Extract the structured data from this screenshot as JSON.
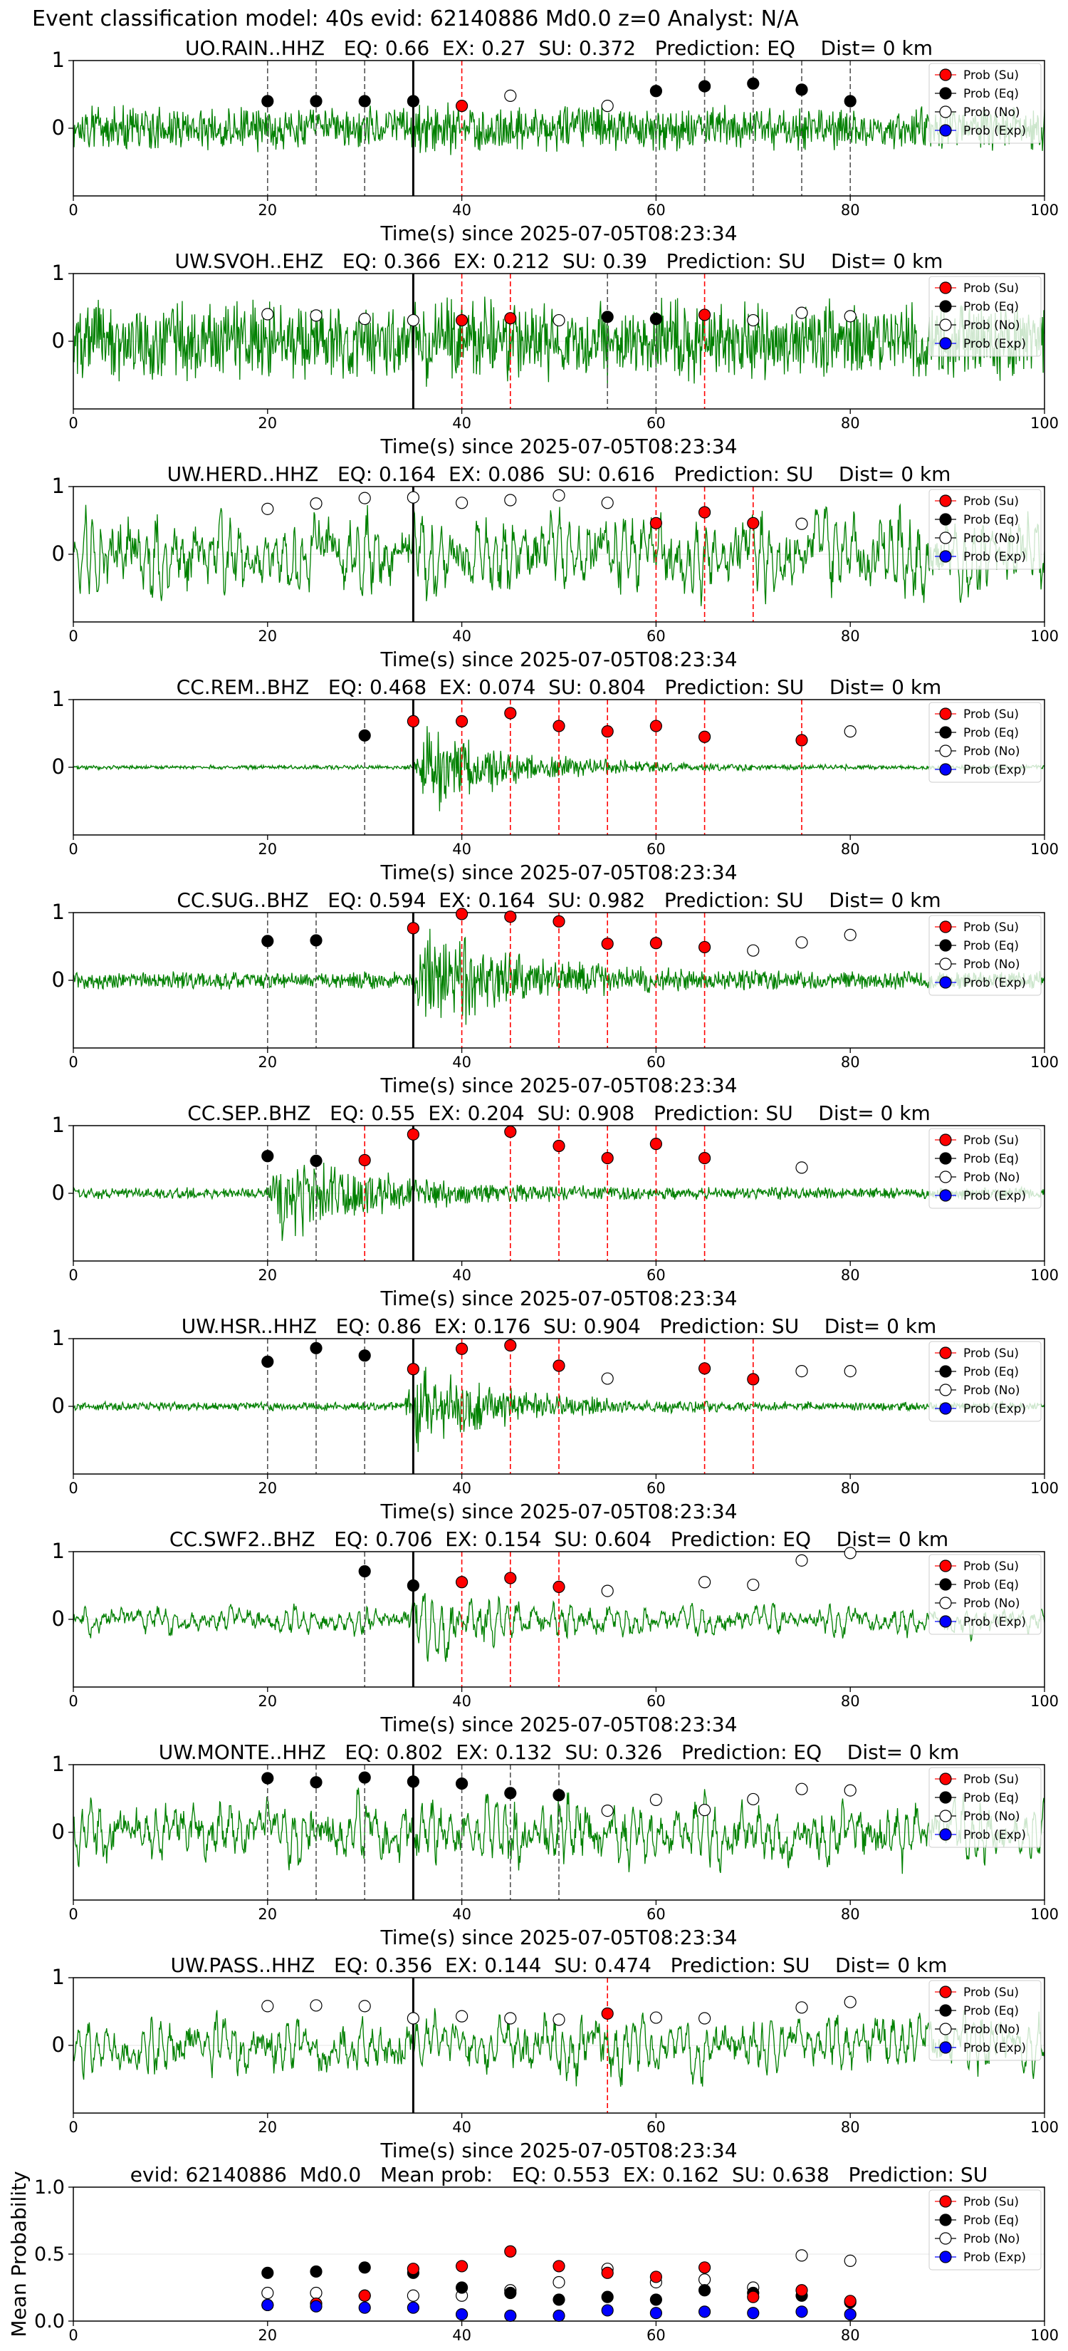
{
  "figure": {
    "suptitle": "Event classification model: 40s evid: 62140886 Md0.0 z=0 Analyst: N/A"
  },
  "legend_labels": [
    "Prob (Su)",
    "Prob (Eq)",
    "Prob (No)",
    "Prob (Exp)"
  ],
  "colors": {
    "waveform": "#008000",
    "su": "#ff0000",
    "eq": "#000000",
    "no": "#ffffff",
    "exp": "#0000ff",
    "pick_line": "#000000",
    "eq_window": "#555555",
    "su_window": "#ff0000"
  },
  "chart_data": [
    {
      "type": "scatter",
      "title": "UO.RAIN..HHZ   EQ: 0.66  EX: 0.27  SU: 0.372   Prediction: EQ    Dist= 0 km",
      "xlabel": "Time(s) since 2025-07-05T08:23:34",
      "xlim": [
        0,
        100
      ],
      "ylim": [
        -1,
        1
      ],
      "xticks": [
        0,
        20,
        40,
        60,
        80,
        100
      ],
      "yticks": [
        0,
        1
      ],
      "waveform": {
        "amplitude": 0.3,
        "style": "noise",
        "burst_start": 34,
        "burst_gain": 1.2
      },
      "pick_time": 35,
      "points": [
        {
          "x": 20,
          "y": 0.4,
          "class": "eq"
        },
        {
          "x": 25,
          "y": 0.4,
          "class": "eq"
        },
        {
          "x": 30,
          "y": 0.4,
          "class": "eq"
        },
        {
          "x": 35,
          "y": 0.4,
          "class": "eq"
        },
        {
          "x": 40,
          "y": 0.33,
          "class": "su"
        },
        {
          "x": 45,
          "y": 0.48,
          "class": "no"
        },
        {
          "x": 55,
          "y": 0.33,
          "class": "no"
        },
        {
          "x": 60,
          "y": 0.55,
          "class": "eq"
        },
        {
          "x": 65,
          "y": 0.62,
          "class": "eq"
        },
        {
          "x": 70,
          "y": 0.66,
          "class": "eq"
        },
        {
          "x": 75,
          "y": 0.57,
          "class": "eq"
        },
        {
          "x": 80,
          "y": 0.4,
          "class": "eq"
        }
      ]
    },
    {
      "type": "scatter",
      "title": "UW.SVOH..EHZ   EQ: 0.366  EX: 0.212  SU: 0.39   Prediction: SU    Dist= 0 km",
      "xlabel": "Time(s) since 2025-07-05T08:23:34",
      "xlim": [
        0,
        100
      ],
      "ylim": [
        -1,
        1
      ],
      "xticks": [
        0,
        20,
        40,
        60,
        80,
        100
      ],
      "yticks": [
        0,
        1
      ],
      "waveform": {
        "amplitude": 0.55,
        "style": "noise",
        "burst_start": 34,
        "burst_gain": 1.1
      },
      "pick_time": 35,
      "points": [
        {
          "x": 20,
          "y": 0.4,
          "class": "no"
        },
        {
          "x": 25,
          "y": 0.38,
          "class": "no"
        },
        {
          "x": 30,
          "y": 0.33,
          "class": "no"
        },
        {
          "x": 35,
          "y": 0.31,
          "class": "no"
        },
        {
          "x": 40,
          "y": 0.31,
          "class": "su"
        },
        {
          "x": 45,
          "y": 0.34,
          "class": "su"
        },
        {
          "x": 50,
          "y": 0.31,
          "class": "no"
        },
        {
          "x": 55,
          "y": 0.36,
          "class": "eq"
        },
        {
          "x": 60,
          "y": 0.33,
          "class": "eq"
        },
        {
          "x": 65,
          "y": 0.39,
          "class": "su"
        },
        {
          "x": 70,
          "y": 0.31,
          "class": "no"
        },
        {
          "x": 75,
          "y": 0.42,
          "class": "no"
        },
        {
          "x": 80,
          "y": 0.37,
          "class": "no"
        }
      ]
    },
    {
      "type": "scatter",
      "title": "UW.HERD..HHZ   EQ: 0.164  EX: 0.086  SU: 0.616   Prediction: SU    Dist= 0 km",
      "xlabel": "Time(s) since 2025-07-05T08:23:34",
      "xlim": [
        0,
        100
      ],
      "ylim": [
        -1,
        1
      ],
      "xticks": [
        0,
        20,
        40,
        60,
        80,
        100
      ],
      "yticks": [
        0,
        1
      ],
      "waveform": {
        "amplitude": 0.6,
        "style": "wavy",
        "burst_start": 34,
        "burst_gain": 1.0
      },
      "pick_time": 35,
      "points": [
        {
          "x": 20,
          "y": 0.67,
          "class": "no"
        },
        {
          "x": 25,
          "y": 0.75,
          "class": "no"
        },
        {
          "x": 30,
          "y": 0.83,
          "class": "no"
        },
        {
          "x": 35,
          "y": 0.84,
          "class": "no"
        },
        {
          "x": 40,
          "y": 0.76,
          "class": "no"
        },
        {
          "x": 45,
          "y": 0.8,
          "class": "no"
        },
        {
          "x": 50,
          "y": 0.87,
          "class": "no"
        },
        {
          "x": 55,
          "y": 0.76,
          "class": "no"
        },
        {
          "x": 60,
          "y": 0.46,
          "class": "su"
        },
        {
          "x": 65,
          "y": 0.62,
          "class": "su"
        },
        {
          "x": 70,
          "y": 0.46,
          "class": "su"
        },
        {
          "x": 75,
          "y": 0.45,
          "class": "no"
        }
      ]
    },
    {
      "type": "scatter",
      "title": "CC.REM..BHZ   EQ: 0.468  EX: 0.074  SU: 0.804   Prediction: SU    Dist= 0 km",
      "xlabel": "Time(s) since 2025-07-05T08:23:34",
      "xlim": [
        0,
        100
      ],
      "ylim": [
        -1,
        1
      ],
      "xticks": [
        0,
        20,
        40,
        60,
        80,
        100
      ],
      "yticks": [
        0,
        1
      ],
      "waveform": {
        "amplitude": 0.03,
        "style": "event",
        "burst_start": 35,
        "burst_gain": 22
      },
      "pick_time": 35,
      "points": [
        {
          "x": 30,
          "y": 0.47,
          "class": "eq"
        },
        {
          "x": 35,
          "y": 0.68,
          "class": "su"
        },
        {
          "x": 40,
          "y": 0.68,
          "class": "su"
        },
        {
          "x": 45,
          "y": 0.8,
          "class": "su"
        },
        {
          "x": 50,
          "y": 0.61,
          "class": "su"
        },
        {
          "x": 55,
          "y": 0.53,
          "class": "su"
        },
        {
          "x": 60,
          "y": 0.61,
          "class": "su"
        },
        {
          "x": 65,
          "y": 0.45,
          "class": "su"
        },
        {
          "x": 75,
          "y": 0.4,
          "class": "su"
        },
        {
          "x": 80,
          "y": 0.53,
          "class": "no"
        }
      ]
    },
    {
      "type": "scatter",
      "title": "CC.SUG..BHZ   EQ: 0.594  EX: 0.164  SU: 0.982   Prediction: SU    Dist= 0 km",
      "xlabel": "Time(s) since 2025-07-05T08:23:34",
      "xlim": [
        0,
        100
      ],
      "ylim": [
        -1,
        1
      ],
      "xticks": [
        0,
        20,
        40,
        60,
        80,
        100
      ],
      "yticks": [
        0,
        1
      ],
      "waveform": {
        "amplitude": 0.12,
        "style": "event",
        "burst_start": 35,
        "burst_gain": 7
      },
      "pick_time": 35,
      "points": [
        {
          "x": 20,
          "y": 0.58,
          "class": "eq"
        },
        {
          "x": 25,
          "y": 0.59,
          "class": "eq"
        },
        {
          "x": 35,
          "y": 0.77,
          "class": "su"
        },
        {
          "x": 40,
          "y": 0.98,
          "class": "su"
        },
        {
          "x": 45,
          "y": 0.94,
          "class": "su"
        },
        {
          "x": 50,
          "y": 0.87,
          "class": "su"
        },
        {
          "x": 55,
          "y": 0.54,
          "class": "su"
        },
        {
          "x": 60,
          "y": 0.55,
          "class": "su"
        },
        {
          "x": 65,
          "y": 0.49,
          "class": "su"
        },
        {
          "x": 70,
          "y": 0.44,
          "class": "no"
        },
        {
          "x": 75,
          "y": 0.56,
          "class": "no"
        },
        {
          "x": 80,
          "y": 0.67,
          "class": "no"
        }
      ]
    },
    {
      "type": "scatter",
      "title": "CC.SEP..BHZ   EQ: 0.55  EX: 0.204  SU: 0.908   Prediction: SU    Dist= 0 km",
      "xlabel": "Time(s) since 2025-07-05T08:23:34",
      "xlim": [
        0,
        100
      ],
      "ylim": [
        -1,
        1
      ],
      "xticks": [
        0,
        20,
        40,
        60,
        80,
        100
      ],
      "yticks": [
        0,
        1
      ],
      "waveform": {
        "amplitude": 0.08,
        "style": "event",
        "burst_start": 20,
        "burst_gain": 9
      },
      "pick_time": 35,
      "points": [
        {
          "x": 20,
          "y": 0.55,
          "class": "eq"
        },
        {
          "x": 25,
          "y": 0.48,
          "class": "eq"
        },
        {
          "x": 30,
          "y": 0.49,
          "class": "su"
        },
        {
          "x": 35,
          "y": 0.87,
          "class": "su"
        },
        {
          "x": 45,
          "y": 0.91,
          "class": "su"
        },
        {
          "x": 50,
          "y": 0.7,
          "class": "su"
        },
        {
          "x": 55,
          "y": 0.52,
          "class": "su"
        },
        {
          "x": 60,
          "y": 0.73,
          "class": "su"
        },
        {
          "x": 65,
          "y": 0.52,
          "class": "su"
        },
        {
          "x": 75,
          "y": 0.38,
          "class": "no"
        }
      ]
    },
    {
      "type": "scatter",
      "title": "UW.HSR..HHZ   EQ: 0.86  EX: 0.176  SU: 0.904   Prediction: SU    Dist= 0 km",
      "xlabel": "Time(s) since 2025-07-05T08:23:34",
      "xlim": [
        0,
        100
      ],
      "ylim": [
        -1,
        1
      ],
      "xticks": [
        0,
        20,
        40,
        60,
        80,
        100
      ],
      "yticks": [
        0,
        1
      ],
      "waveform": {
        "amplitude": 0.06,
        "style": "event",
        "burst_start": 34,
        "burst_gain": 10
      },
      "pick_time": 35,
      "points": [
        {
          "x": 20,
          "y": 0.66,
          "class": "eq"
        },
        {
          "x": 25,
          "y": 0.86,
          "class": "eq"
        },
        {
          "x": 30,
          "y": 0.75,
          "class": "eq"
        },
        {
          "x": 35,
          "y": 0.55,
          "class": "su"
        },
        {
          "x": 40,
          "y": 0.85,
          "class": "su"
        },
        {
          "x": 45,
          "y": 0.9,
          "class": "su"
        },
        {
          "x": 50,
          "y": 0.6,
          "class": "su"
        },
        {
          "x": 55,
          "y": 0.41,
          "class": "no"
        },
        {
          "x": 65,
          "y": 0.56,
          "class": "su"
        },
        {
          "x": 70,
          "y": 0.4,
          "class": "su"
        },
        {
          "x": 75,
          "y": 0.52,
          "class": "no"
        },
        {
          "x": 80,
          "y": 0.52,
          "class": "no"
        }
      ]
    },
    {
      "type": "scatter",
      "title": "CC.SWF2..BHZ   EQ: 0.706  EX: 0.154  SU: 0.604   Prediction: EQ    Dist= 0 km",
      "xlabel": "Time(s) since 2025-07-05T08:23:34",
      "xlim": [
        0,
        100
      ],
      "ylim": [
        -1,
        1
      ],
      "xticks": [
        0,
        20,
        40,
        60,
        80,
        100
      ],
      "yticks": [
        0,
        1
      ],
      "waveform": {
        "amplitude": 0.2,
        "style": "wavy-event",
        "burst_start": 34,
        "burst_gain": 3
      },
      "pick_time": 35,
      "points": [
        {
          "x": 30,
          "y": 0.71,
          "class": "eq"
        },
        {
          "x": 35,
          "y": 0.5,
          "class": "eq"
        },
        {
          "x": 40,
          "y": 0.55,
          "class": "su"
        },
        {
          "x": 45,
          "y": 0.61,
          "class": "su"
        },
        {
          "x": 50,
          "y": 0.48,
          "class": "su"
        },
        {
          "x": 55,
          "y": 0.42,
          "class": "no"
        },
        {
          "x": 65,
          "y": 0.55,
          "class": "no"
        },
        {
          "x": 70,
          "y": 0.51,
          "class": "no"
        },
        {
          "x": 75,
          "y": 0.87,
          "class": "no"
        },
        {
          "x": 80,
          "y": 0.98,
          "class": "no"
        }
      ]
    },
    {
      "type": "scatter",
      "title": "UW.MONTE..HHZ   EQ: 0.802  EX: 0.132  SU: 0.326   Prediction: EQ    Dist= 0 km",
      "xlabel": "Time(s) since 2025-07-05T08:23:34",
      "xlim": [
        0,
        100
      ],
      "ylim": [
        -1,
        1
      ],
      "xticks": [
        0,
        20,
        40,
        60,
        80,
        100
      ],
      "yticks": [
        0,
        1
      ],
      "waveform": {
        "amplitude": 0.45,
        "style": "wavy",
        "burst_start": 44,
        "burst_gain": 1.4
      },
      "pick_time": 35,
      "points": [
        {
          "x": 20,
          "y": 0.8,
          "class": "eq"
        },
        {
          "x": 25,
          "y": 0.74,
          "class": "eq"
        },
        {
          "x": 30,
          "y": 0.81,
          "class": "eq"
        },
        {
          "x": 35,
          "y": 0.75,
          "class": "eq"
        },
        {
          "x": 40,
          "y": 0.72,
          "class": "eq"
        },
        {
          "x": 45,
          "y": 0.58,
          "class": "eq"
        },
        {
          "x": 50,
          "y": 0.55,
          "class": "eq"
        },
        {
          "x": 55,
          "y": 0.32,
          "class": "no"
        },
        {
          "x": 60,
          "y": 0.48,
          "class": "no"
        },
        {
          "x": 65,
          "y": 0.33,
          "class": "no"
        },
        {
          "x": 70,
          "y": 0.49,
          "class": "no"
        },
        {
          "x": 75,
          "y": 0.64,
          "class": "no"
        },
        {
          "x": 80,
          "y": 0.62,
          "class": "no"
        }
      ]
    },
    {
      "type": "scatter",
      "title": "UW.PASS..HHZ   EQ: 0.356  EX: 0.144  SU: 0.474   Prediction: SU    Dist= 0 km",
      "xlabel": "Time(s) since 2025-07-05T08:23:34",
      "xlim": [
        0,
        100
      ],
      "ylim": [
        -1,
        1
      ],
      "xticks": [
        0,
        20,
        40,
        60,
        80,
        100
      ],
      "yticks": [
        0,
        1
      ],
      "waveform": {
        "amplitude": 0.4,
        "style": "wavy",
        "burst_start": 44,
        "burst_gain": 1.3
      },
      "pick_time": 35,
      "points": [
        {
          "x": 20,
          "y": 0.58,
          "class": "no"
        },
        {
          "x": 25,
          "y": 0.59,
          "class": "no"
        },
        {
          "x": 30,
          "y": 0.58,
          "class": "no"
        },
        {
          "x": 35,
          "y": 0.4,
          "class": "no"
        },
        {
          "x": 40,
          "y": 0.43,
          "class": "no"
        },
        {
          "x": 45,
          "y": 0.4,
          "class": "no"
        },
        {
          "x": 50,
          "y": 0.38,
          "class": "no"
        },
        {
          "x": 55,
          "y": 0.47,
          "class": "su"
        },
        {
          "x": 60,
          "y": 0.41,
          "class": "no"
        },
        {
          "x": 65,
          "y": 0.4,
          "class": "no"
        },
        {
          "x": 75,
          "y": 0.56,
          "class": "no"
        },
        {
          "x": 80,
          "y": 0.64,
          "class": "no"
        }
      ]
    },
    {
      "type": "scatter",
      "title": "evid: 62140886  Md0.0   Mean prob:   EQ: 0.553  EX: 0.162  SU: 0.638   Prediction: SU",
      "xlabel": "",
      "ylabel": "Mean Probability",
      "xlim": [
        0,
        100
      ],
      "ylim": [
        0,
        1
      ],
      "xticks": [
        0,
        20,
        40,
        60,
        80,
        100
      ],
      "yticks": [
        0.0,
        0.5,
        1.0
      ],
      "series": [
        {
          "class": "no",
          "x": [
            20,
            25,
            30,
            35,
            40,
            45,
            50,
            55,
            60,
            65,
            70,
            75,
            80
          ],
          "values": [
            0.21,
            0.21,
            0.19,
            0.19,
            0.19,
            0.23,
            0.29,
            0.39,
            0.29,
            0.31,
            0.25,
            0.49,
            0.45
          ]
        },
        {
          "class": "eq",
          "x": [
            20,
            25,
            30,
            35,
            40,
            45,
            50,
            55,
            60,
            65,
            70,
            75,
            80
          ],
          "values": [
            0.36,
            0.37,
            0.4,
            0.36,
            0.25,
            0.21,
            0.16,
            0.18,
            0.16,
            0.23,
            0.21,
            0.19,
            0.14
          ]
        },
        {
          "class": "su",
          "x": [
            20,
            25,
            30,
            35,
            40,
            45,
            50,
            55,
            60,
            65,
            70,
            75,
            80
          ],
          "values": [
            0.12,
            0.13,
            0.19,
            0.39,
            0.41,
            0.52,
            0.41,
            0.36,
            0.33,
            0.4,
            0.18,
            0.23,
            0.15
          ]
        },
        {
          "class": "exp",
          "x": [
            20,
            25,
            30,
            35,
            40,
            45,
            50,
            55,
            60,
            65,
            70,
            75,
            80
          ],
          "values": [
            0.12,
            0.11,
            0.1,
            0.1,
            0.05,
            0.04,
            0.04,
            0.08,
            0.06,
            0.07,
            0.06,
            0.07,
            0.05
          ]
        }
      ]
    }
  ]
}
